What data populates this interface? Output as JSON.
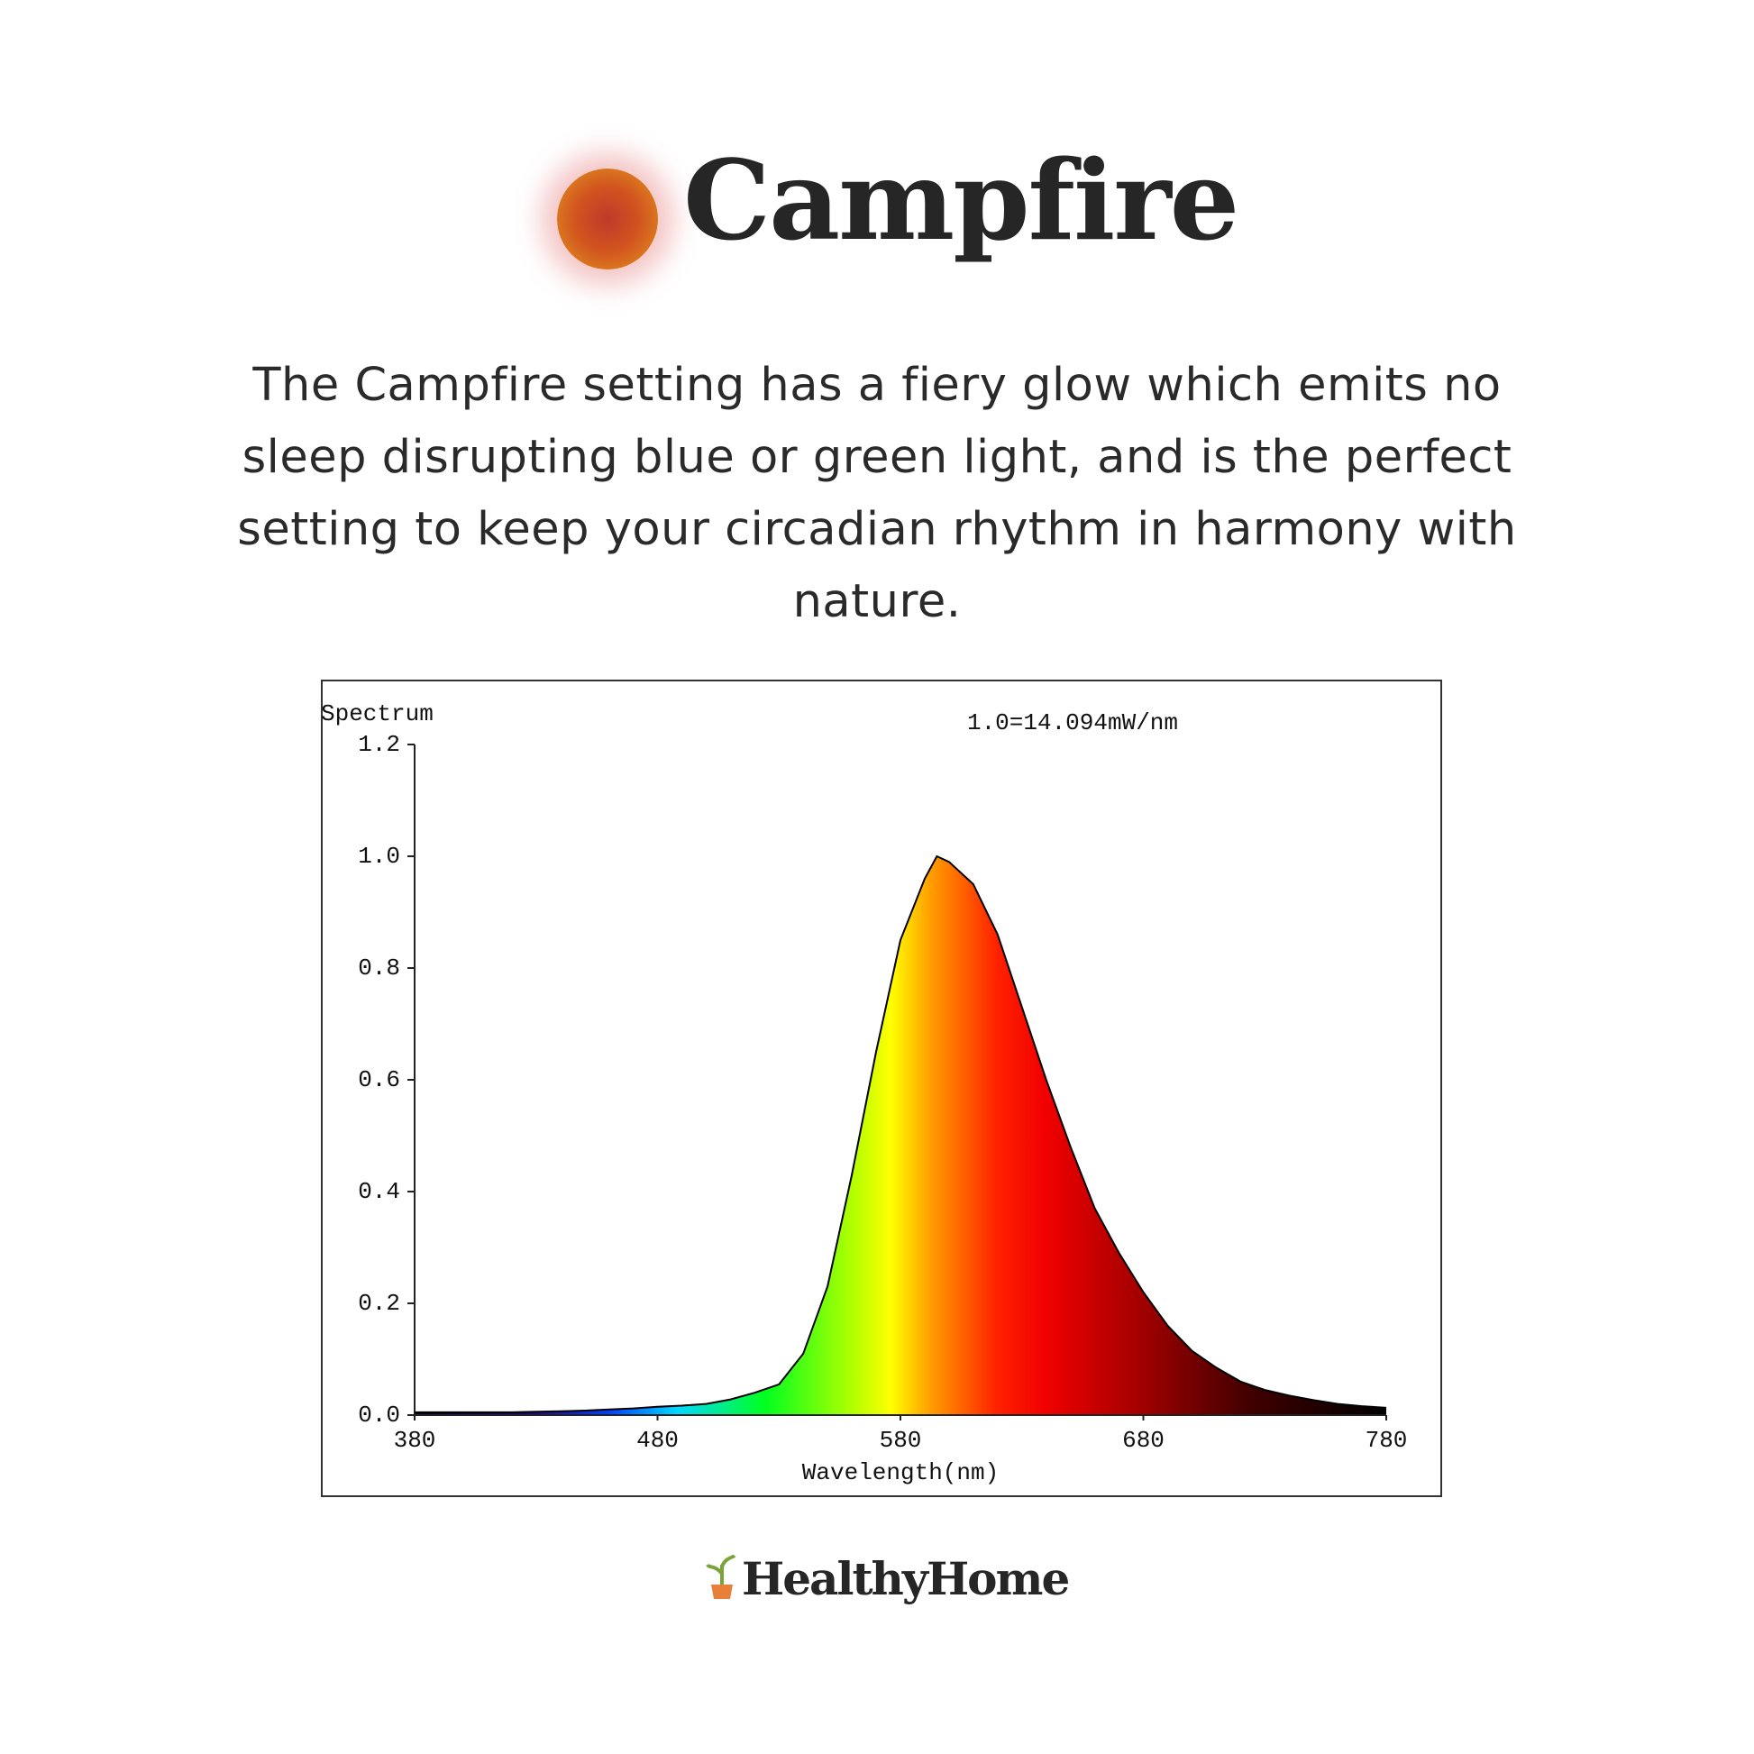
{
  "header": {
    "title": "Campfire"
  },
  "description": "The Campfire setting has a fiery glow which emits no sleep disrupting blue or green light, and is the perfect setting to keep your circadian rhythm in harmony with nature.",
  "chart_data": {
    "type": "area",
    "ylabel": "Spectrum",
    "xlabel": "Wavelength(nm)",
    "annotation": "1.0=14.094mW/nm",
    "x": [
      380,
      390,
      400,
      410,
      420,
      430,
      440,
      450,
      460,
      470,
      480,
      490,
      500,
      510,
      520,
      530,
      540,
      550,
      560,
      570,
      580,
      590,
      595,
      600,
      610,
      620,
      630,
      640,
      650,
      660,
      670,
      680,
      690,
      700,
      710,
      720,
      730,
      740,
      750,
      760,
      770,
      780
    ],
    "values": [
      0.005,
      0.005,
      0.005,
      0.005,
      0.005,
      0.006,
      0.007,
      0.008,
      0.01,
      0.012,
      0.015,
      0.017,
      0.02,
      0.028,
      0.04,
      0.055,
      0.11,
      0.23,
      0.43,
      0.65,
      0.85,
      0.96,
      1.0,
      0.99,
      0.95,
      0.86,
      0.73,
      0.6,
      0.48,
      0.37,
      0.29,
      0.22,
      0.16,
      0.115,
      0.085,
      0.06,
      0.045,
      0.035,
      0.027,
      0.02,
      0.016,
      0.013
    ],
    "xlim": [
      380,
      780
    ],
    "xticks": [
      380,
      480,
      580,
      680,
      780
    ],
    "ylim": [
      0,
      1.2
    ],
    "yticks": [
      {
        "value": 0,
        "label": "0.0"
      },
      0.2,
      0.4,
      0.6,
      0.8,
      {
        "value": 1,
        "label": "1.0"
      },
      1.2
    ],
    "color": "#000000"
  },
  "brand": "HealthyHome"
}
